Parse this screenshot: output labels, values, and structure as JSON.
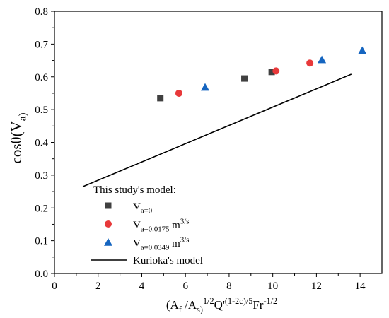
{
  "chart_data": {
    "type": "scatter",
    "xlabel": "(A_f /A_s)^{1/2}Q'^{(1-2c)/5}Fr^{-1/2}",
    "ylabel": "cosθ(V_a)",
    "xlim": [
      0,
      15
    ],
    "ylim": [
      0,
      0.8
    ],
    "x_ticks": [
      "0",
      "2",
      "4",
      "6",
      "8",
      "10",
      "12",
      "14"
    ],
    "y_ticks": [
      "0.0",
      "0.1",
      "0.2",
      "0.3",
      "0.4",
      "0.5",
      "0.6",
      "0.7",
      "0.8"
    ],
    "grid": false,
    "legend_placement": "bottom-left",
    "legend_title": "This study's model:",
    "series": [
      {
        "name": "V_a=0",
        "marker": "square",
        "color": "#404040",
        "points": [
          [
            4.85,
            0.535
          ],
          [
            8.7,
            0.595
          ],
          [
            9.95,
            0.615
          ]
        ]
      },
      {
        "name": "V_a=0.0175 m^3/s",
        "marker": "circle",
        "color": "#e8393a",
        "points": [
          [
            5.7,
            0.55
          ],
          [
            10.15,
            0.618
          ],
          [
            11.7,
            0.642
          ]
        ]
      },
      {
        "name": "V_a=0.0349 m^3/s",
        "marker": "triangle",
        "color": "#1565c0",
        "points": [
          [
            6.9,
            0.568
          ],
          [
            12.25,
            0.652
          ],
          [
            14.1,
            0.68
          ]
        ]
      }
    ],
    "lines": [
      {
        "name": "Kurioka's model",
        "color": "#000000",
        "points": [
          [
            1.3,
            0.265
          ],
          [
            13.6,
            0.608
          ]
        ]
      }
    ]
  }
}
